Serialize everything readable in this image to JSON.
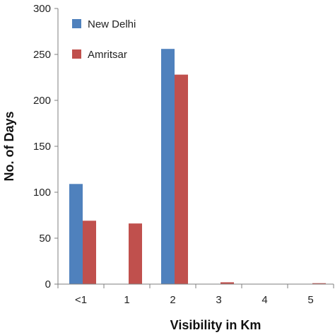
{
  "chart_data": {
    "type": "bar",
    "title": "",
    "xlabel": "Visibility in Km",
    "ylabel": "No. of Days",
    "categories": [
      "<1",
      "1",
      "2",
      "3",
      "4",
      "5"
    ],
    "ylim": [
      0,
      300
    ],
    "yticks": [
      0,
      50,
      100,
      150,
      200,
      250,
      300
    ],
    "grid": false,
    "legend_position": "top-left",
    "series": [
      {
        "name": "New Delhi",
        "color": "#4F81BD",
        "values": [
          109,
          0,
          256,
          0,
          0,
          0
        ]
      },
      {
        "name": "Amritsar",
        "color": "#C0504D",
        "values": [
          69,
          66,
          228,
          2,
          0,
          1
        ]
      }
    ]
  }
}
